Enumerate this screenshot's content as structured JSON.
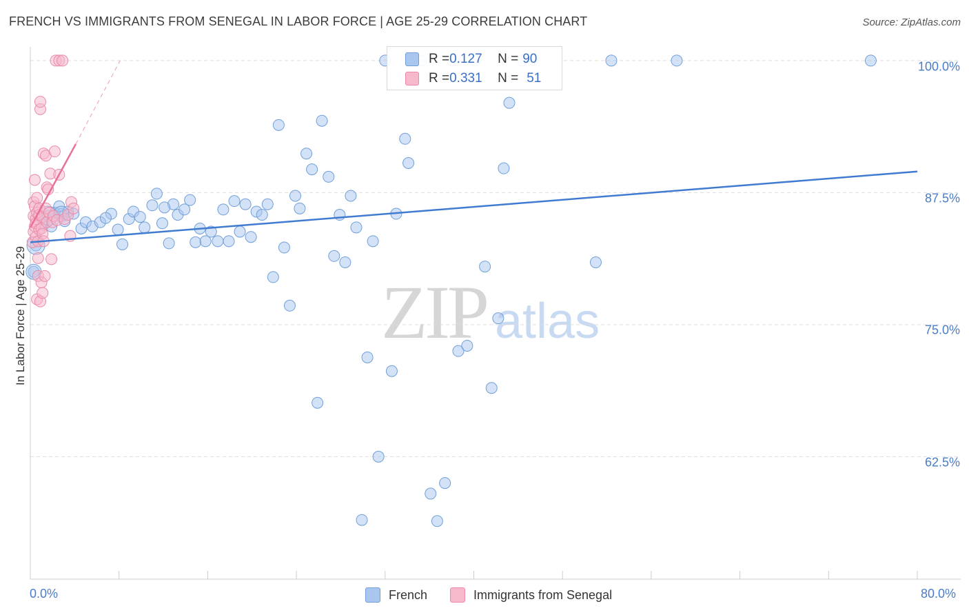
{
  "header": {
    "title": "FRENCH VS IMMIGRANTS FROM SENEGAL IN LABOR FORCE | AGE 25-29 CORRELATION CHART",
    "source": "Source: ZipAtlas.com"
  },
  "watermark": {
    "zip": "ZIP",
    "atlas": "atlas"
  },
  "legend": {
    "rows": [
      {
        "r_label": "R = ",
        "r_value": "0.127",
        "n_label": "N = ",
        "n_value": "90",
        "color": "#a9c6ef"
      },
      {
        "r_label": "R = ",
        "r_value": "0.331",
        "n_label": "N = ",
        "n_value": "51",
        "color": "#f6b8cb"
      }
    ]
  },
  "bottom_legend": [
    {
      "label": "French",
      "color": "#a9c6ef"
    },
    {
      "label": "Immigrants from Senegal",
      "color": "#f6b8cb"
    }
  ],
  "colors": {
    "french_fill": "#a9c6ef",
    "french_stroke": "#6f9fd9",
    "french_line": "#3f7bd0",
    "senegal_fill": "#f6b8cb",
    "senegal_stroke": "#ea8aa7",
    "senegal_line": "#e86f95",
    "tick_text": "#4a7cc7",
    "grid": "#dddddd"
  },
  "chart_data": {
    "type": "scatter",
    "title": "FRENCH VS IMMIGRANTS FROM SENEGAL IN LABOR FORCE | AGE 25-29 CORRELATION CHART",
    "xlabel": "",
    "ylabel": "In Labor Force | Age 25-29",
    "xlim": [
      0,
      80
    ],
    "ylim": [
      50.9,
      101.3
    ],
    "x_tick_labels": [
      "0.0%",
      "80.0%"
    ],
    "y_ticks": [
      62.5,
      75.0,
      87.5,
      100.0
    ],
    "y_tick_labels": [
      "62.5%",
      "75.0%",
      "87.5%",
      "100.0%"
    ],
    "grid": "horizontal dashed",
    "legend_position": "top-center",
    "series": [
      {
        "name": "French",
        "R": 0.127,
        "N": 90,
        "trend": {
          "x": [
            0.0,
            80.0
          ],
          "y": [
            82.8,
            89.5
          ]
        },
        "points": [
          [
            0.3,
            80.0
          ],
          [
            0.5,
            82.5
          ],
          [
            1.2,
            84.5
          ],
          [
            1.6,
            85.3
          ],
          [
            2.2,
            85.6
          ],
          [
            2.8,
            85.5
          ],
          [
            3.4,
            85.7
          ],
          [
            3.9,
            85.5
          ],
          [
            4.6,
            84.1
          ],
          [
            5.0,
            84.7
          ],
          [
            5.6,
            84.3
          ],
          [
            6.3,
            84.7
          ],
          [
            7.3,
            85.5
          ],
          [
            7.9,
            84.0
          ],
          [
            8.3,
            82.6
          ],
          [
            8.9,
            85.0
          ],
          [
            9.3,
            85.7
          ],
          [
            9.9,
            85.2
          ],
          [
            10.3,
            84.2
          ],
          [
            11.0,
            86.3
          ],
          [
            11.4,
            87.4
          ],
          [
            11.9,
            84.6
          ],
          [
            12.5,
            82.7
          ],
          [
            12.9,
            86.4
          ],
          [
            13.3,
            85.4
          ],
          [
            13.9,
            85.9
          ],
          [
            14.4,
            86.8
          ],
          [
            14.9,
            82.8
          ],
          [
            15.3,
            84.1
          ],
          [
            15.8,
            82.9
          ],
          [
            16.3,
            83.8
          ],
          [
            16.9,
            82.9
          ],
          [
            17.4,
            85.9
          ],
          [
            17.9,
            82.9
          ],
          [
            18.4,
            86.7
          ],
          [
            18.9,
            83.8
          ],
          [
            19.4,
            86.4
          ],
          [
            19.9,
            83.3
          ],
          [
            20.4,
            85.7
          ],
          [
            20.9,
            85.4
          ],
          [
            21.4,
            86.4
          ],
          [
            21.9,
            79.5
          ],
          [
            22.4,
            93.9
          ],
          [
            22.9,
            82.3
          ],
          [
            23.4,
            76.8
          ],
          [
            23.9,
            87.2
          ],
          [
            24.3,
            86.0
          ],
          [
            24.9,
            91.2
          ],
          [
            25.4,
            89.7
          ],
          [
            25.9,
            67.6
          ],
          [
            26.3,
            94.3
          ],
          [
            26.9,
            89.0
          ],
          [
            27.4,
            81.5
          ],
          [
            27.9,
            85.4
          ],
          [
            28.4,
            80.9
          ],
          [
            28.9,
            87.2
          ],
          [
            29.4,
            84.2
          ],
          [
            29.9,
            56.5
          ],
          [
            30.4,
            71.9
          ],
          [
            30.9,
            82.9
          ],
          [
            31.4,
            62.5
          ],
          [
            32.0,
            100.0
          ],
          [
            32.6,
            70.6
          ],
          [
            33.0,
            85.5
          ],
          [
            33.8,
            92.6
          ],
          [
            34.1,
            90.3
          ],
          [
            35.2,
            100.0
          ],
          [
            36.1,
            59.0
          ],
          [
            36.7,
            56.4
          ],
          [
            37.4,
            60.0
          ],
          [
            38.1,
            100.0
          ],
          [
            38.6,
            72.5
          ],
          [
            39.4,
            73.0
          ],
          [
            40.1,
            100.0
          ],
          [
            41.0,
            80.5
          ],
          [
            41.6,
            69.0
          ],
          [
            42.2,
            75.6
          ],
          [
            42.7,
            89.8
          ],
          [
            43.2,
            96.0
          ],
          [
            44.3,
            100.0
          ],
          [
            45.3,
            100.0
          ],
          [
            51.0,
            80.9
          ],
          [
            52.4,
            100.0
          ],
          [
            58.3,
            100.0
          ],
          [
            75.8,
            100.0
          ],
          [
            1.9,
            84.3
          ],
          [
            2.6,
            86.2
          ],
          [
            3.1,
            84.8
          ],
          [
            6.8,
            85.1
          ],
          [
            12.1,
            86.1
          ]
        ]
      },
      {
        "name": "Immigrants from Senegal",
        "R": 0.331,
        "N": 51,
        "trend": {
          "x": [
            0.0,
            4.1
          ],
          "y": [
            84.2,
            92.1
          ]
        },
        "trend_dashed": {
          "x": [
            4.1,
            8.1
          ],
          "y": [
            92.1,
            100.0
          ]
        },
        "points": [
          [
            0.2,
            82.8
          ],
          [
            0.3,
            83.8
          ],
          [
            0.3,
            85.3
          ],
          [
            0.3,
            86.6
          ],
          [
            0.4,
            84.3
          ],
          [
            0.4,
            88.7
          ],
          [
            0.4,
            86.2
          ],
          [
            0.5,
            85.0
          ],
          [
            0.5,
            84.6
          ],
          [
            0.5,
            83.3
          ],
          [
            0.6,
            87.0
          ],
          [
            0.6,
            85.6
          ],
          [
            0.6,
            77.4
          ],
          [
            0.7,
            79.6
          ],
          [
            0.7,
            81.3
          ],
          [
            0.7,
            82.9
          ],
          [
            0.8,
            84.0
          ],
          [
            0.8,
            85.4
          ],
          [
            0.8,
            86.0
          ],
          [
            0.9,
            95.4
          ],
          [
            0.9,
            96.1
          ],
          [
            0.9,
            77.2
          ],
          [
            1.0,
            84.1
          ],
          [
            1.0,
            79.0
          ],
          [
            1.1,
            78.0
          ],
          [
            1.1,
            85.2
          ],
          [
            1.1,
            83.6
          ],
          [
            1.2,
            91.2
          ],
          [
            1.2,
            82.9
          ],
          [
            1.3,
            79.6
          ],
          [
            1.4,
            91.0
          ],
          [
            1.4,
            86.0
          ],
          [
            1.5,
            84.7
          ],
          [
            1.5,
            88.0
          ],
          [
            1.6,
            87.8
          ],
          [
            1.7,
            85.6
          ],
          [
            1.8,
            89.3
          ],
          [
            1.9,
            81.2
          ],
          [
            2.0,
            84.7
          ],
          [
            2.1,
            85.3
          ],
          [
            2.2,
            91.4
          ],
          [
            2.3,
            100.0
          ],
          [
            2.4,
            84.9
          ],
          [
            2.6,
            100.0
          ],
          [
            2.6,
            89.2
          ],
          [
            2.9,
            100.0
          ],
          [
            3.1,
            85.0
          ],
          [
            3.4,
            85.4
          ],
          [
            3.6,
            83.4
          ],
          [
            3.7,
            86.6
          ],
          [
            3.9,
            86.0
          ]
        ]
      }
    ]
  }
}
